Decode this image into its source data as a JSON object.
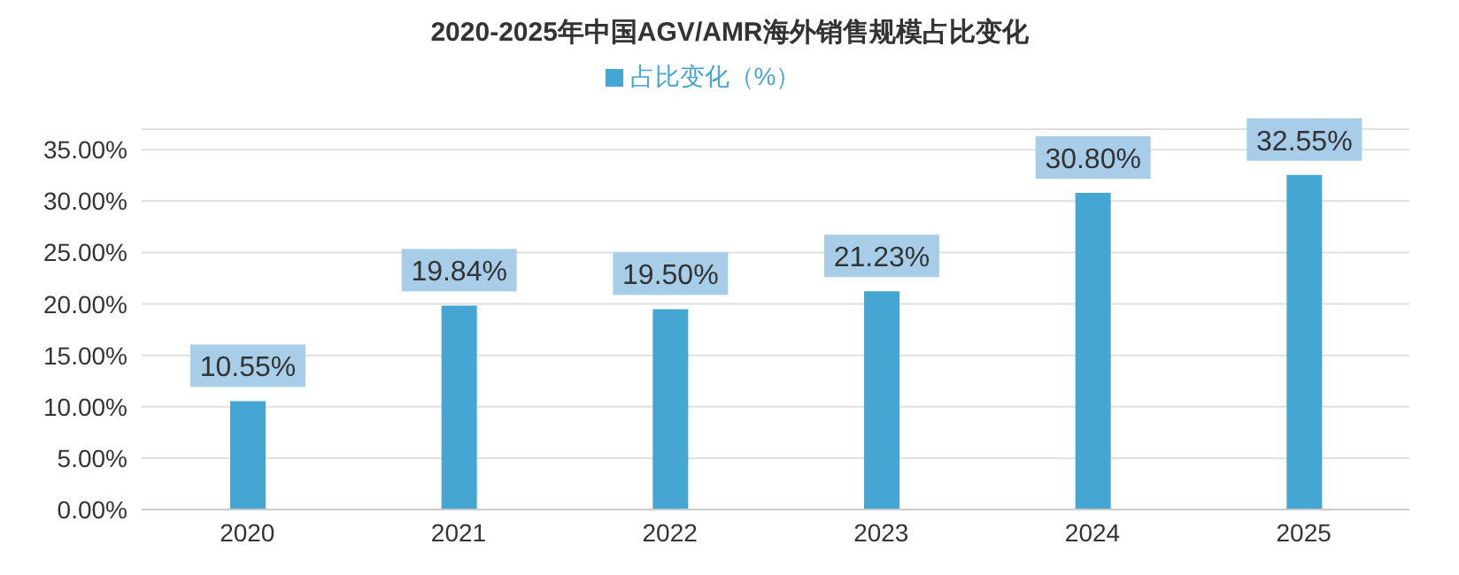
{
  "chart_data": {
    "type": "bar",
    "title": "2020-2025年中国AGV/AMR海外销售规模占比变化",
    "categories": [
      "2020",
      "2021",
      "2022",
      "2023",
      "2024",
      "2025"
    ],
    "series": [
      {
        "name": "占比变化（%）",
        "color": "#45a6d4",
        "values": [
          10.55,
          19.84,
          19.5,
          21.23,
          30.8,
          32.55
        ],
        "value_labels": [
          "10.55%",
          "19.84%",
          "19.50%",
          "21.23%",
          "30.80%",
          "32.55%"
        ]
      }
    ],
    "ylim": [
      0,
      37
    ],
    "yticks": [
      {
        "value": 0,
        "label": "0.00%"
      },
      {
        "value": 5,
        "label": "5.00%"
      },
      {
        "value": 10,
        "label": "10.00%"
      },
      {
        "value": 15,
        "label": "15.00%"
      },
      {
        "value": 20,
        "label": "20.00%"
      },
      {
        "value": 25,
        "label": "25.00%"
      },
      {
        "value": 30,
        "label": "30.00%"
      },
      {
        "value": 35,
        "label": "35.00%"
      }
    ],
    "grid": "y",
    "legend": "top"
  }
}
